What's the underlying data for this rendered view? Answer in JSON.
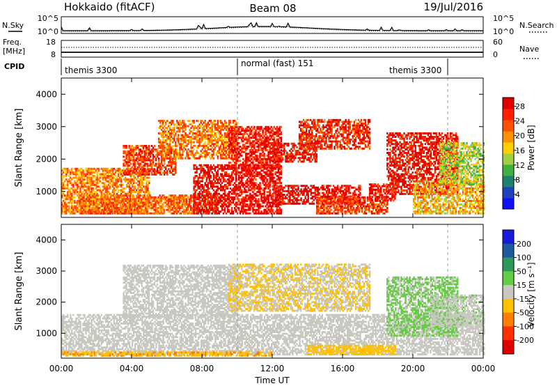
{
  "header": {
    "station": "Hokkaido (fitACF)",
    "beam": "Beam 08",
    "date": "19/Jul/2016"
  },
  "summary_panels": {
    "nsky": {
      "label": "N.Sky",
      "ticks": [
        "10^5",
        "10^0"
      ],
      "right_label": "N.Search",
      "right_ticks": [
        "10^5",
        "10^0"
      ]
    },
    "freq": {
      "label_line1": "Freq.",
      "label_line2": "[MHz]",
      "ticks": [
        "18",
        "8"
      ],
      "right_label": "Nave",
      "right_ticks": [
        "60",
        "0"
      ]
    },
    "cpid": {
      "label": "CPID",
      "segments": [
        {
          "text": "themis 3300",
          "start_hour": 0
        },
        {
          "text": "normal (fast) 151",
          "start_hour": 10
        },
        {
          "text": "themis 3300",
          "start_hour": 22
        }
      ]
    }
  },
  "time_axis": {
    "label": "Time UT",
    "ticks": [
      "00:00",
      "04:00",
      "08:00",
      "12:00",
      "16:00",
      "20:00",
      "00:00"
    ]
  },
  "power_scale": {
    "title": "Power [dB]",
    "ticks": [
      "4",
      "8",
      "12",
      "16",
      "20",
      "24",
      "28"
    ],
    "colors": [
      "#1010ff",
      "#2040c0",
      "#208070",
      "#40b040",
      "#a0d040",
      "#ffd000",
      "#ff9000",
      "#ff5000",
      "#ff2000",
      "#e00000"
    ]
  },
  "velocity_scale": {
    "title": "Velocity [m s⁻¹]",
    "ticks": [
      "200",
      "100",
      "50",
      "15",
      "-15",
      "-50",
      "-100",
      "-200"
    ],
    "colors": [
      "#1a1adc",
      "#1e5aa0",
      "#2e9a5a",
      "#66cc44",
      "#c8c8c0",
      "#ffc000",
      "#ff8000",
      "#ff3000",
      "#e00000"
    ]
  },
  "chart_data": [
    {
      "type": "heatmap",
      "name": "Power",
      "title": "",
      "xlabel": "Time UT",
      "ylabel": "Slant Range [km]",
      "xlim": [
        0,
        24
      ],
      "ylim": [
        200,
        4500
      ],
      "y_ticks": [
        1000,
        2000,
        3000,
        4000
      ],
      "colorbar_label": "Power [dB]",
      "colorbar_range": [
        0,
        30
      ],
      "regions": [
        {
          "t": [
            0.0,
            5.0
          ],
          "r": [
            300,
            1700
          ],
          "level": 20
        },
        {
          "t": [
            1.0,
            9.0
          ],
          "r": [
            300,
            900
          ],
          "level": 22
        },
        {
          "t": [
            3.5,
            6.5
          ],
          "r": [
            1500,
            2400
          ],
          "level": 24
        },
        {
          "t": [
            5.5,
            10.0
          ],
          "r": [
            2000,
            3200
          ],
          "level": 21
        },
        {
          "t": [
            7.5,
            12.5
          ],
          "r": [
            300,
            1800
          ],
          "level": 28
        },
        {
          "t": [
            9.5,
            12.5
          ],
          "r": [
            1700,
            3000
          ],
          "level": 27
        },
        {
          "t": [
            12.0,
            17.0
          ],
          "r": [
            600,
            1200
          ],
          "level": 28
        },
        {
          "t": [
            12.0,
            14.5
          ],
          "r": [
            1900,
            2500
          ],
          "level": 27
        },
        {
          "t": [
            13.5,
            17.5
          ],
          "r": [
            2300,
            3200
          ],
          "level": 25
        },
        {
          "t": [
            14.5,
            18.5
          ],
          "r": [
            300,
            800
          ],
          "level": 24
        },
        {
          "t": [
            17.5,
            19.0
          ],
          "r": [
            700,
            1200
          ],
          "level": 27
        },
        {
          "t": [
            18.5,
            22.5
          ],
          "r": [
            900,
            2800
          ],
          "level": 27
        },
        {
          "t": [
            20.0,
            24.0
          ],
          "r": [
            300,
            1300
          ],
          "level": 18
        },
        {
          "t": [
            21.5,
            24.0
          ],
          "r": [
            1200,
            2500
          ],
          "level": 14
        }
      ]
    },
    {
      "type": "heatmap",
      "name": "Velocity",
      "title": "",
      "xlabel": "Time UT",
      "ylabel": "Slant Range [km]",
      "xlim": [
        0,
        24
      ],
      "ylim": [
        200,
        4500
      ],
      "y_ticks": [
        1000,
        2000,
        3000,
        4000
      ],
      "colorbar_label": "Velocity [m s⁻¹]",
      "colorbar_range": [
        -200,
        200
      ],
      "regions": [
        {
          "t": [
            0.0,
            24.0
          ],
          "r": [
            300,
            1600
          ],
          "v": 0
        },
        {
          "t": [
            3.5,
            10.0
          ],
          "r": [
            1500,
            3200
          ],
          "v": 0
        },
        {
          "t": [
            9.5,
            17.5
          ],
          "r": [
            1700,
            3200
          ],
          "v": -20
        },
        {
          "t": [
            18.5,
            22.5
          ],
          "r": [
            900,
            2800
          ],
          "v": 30
        },
        {
          "t": [
            0.0,
            12.0
          ],
          "r": [
            250,
            400
          ],
          "v": -60
        },
        {
          "t": [
            14.0,
            19.0
          ],
          "r": [
            300,
            600
          ],
          "v": -40
        },
        {
          "t": [
            21.0,
            24.0
          ],
          "r": [
            1200,
            2200
          ],
          "v": 10
        }
      ]
    }
  ]
}
